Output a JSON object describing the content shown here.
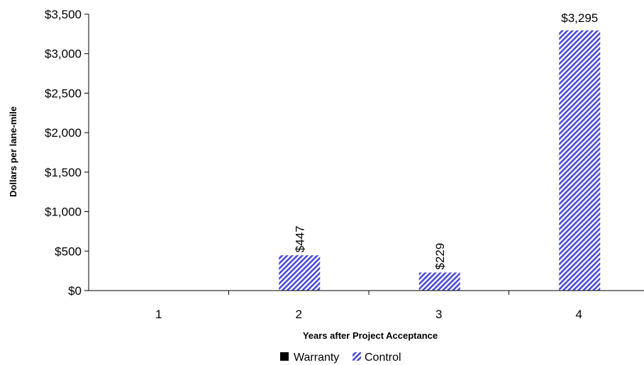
{
  "chart_data": {
    "type": "bar",
    "xlabel": "Years after Project Acceptance",
    "ylabel": "Dollars per lane-mile",
    "categories": [
      "1",
      "2",
      "3",
      "4"
    ],
    "ylim": [
      0,
      3500
    ],
    "yticks": [
      0,
      500,
      1000,
      1500,
      2000,
      2500,
      3000,
      3500
    ],
    "ytick_labels": [
      "$0",
      "$500",
      "$1,000",
      "$1,500",
      "$2,000",
      "$2,500",
      "$3,000",
      "$3,500"
    ],
    "grid": false,
    "legend_position": "bottom",
    "series": [
      {
        "name": "Warranty",
        "values": [
          0,
          0,
          0,
          0
        ],
        "labels": [
          "",
          "",
          "",
          ""
        ],
        "color": "#000000",
        "fill": "solid"
      },
      {
        "name": "Control",
        "values": [
          0,
          447,
          229,
          3295
        ],
        "labels": [
          "",
          "$447",
          "$229",
          "$3,295"
        ],
        "color": "#4a4ad8",
        "fill": "diagonal-hatch"
      }
    ]
  }
}
